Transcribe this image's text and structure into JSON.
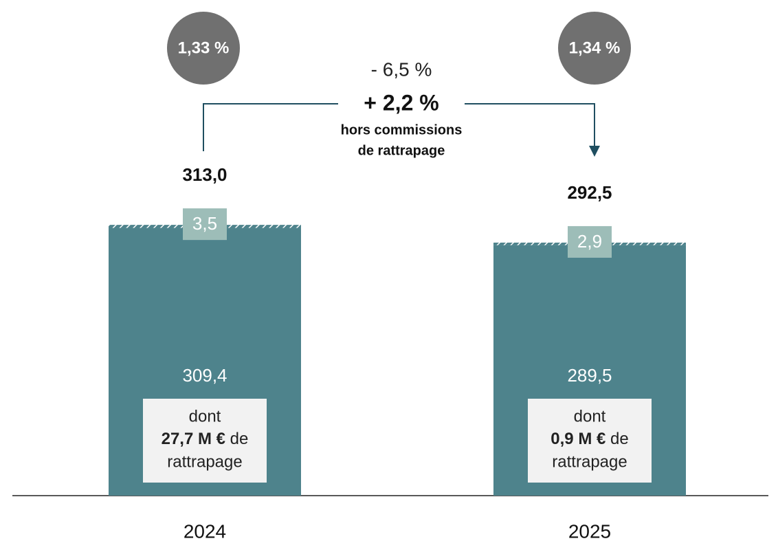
{
  "chart_data": {
    "type": "stacked_bar",
    "categories": [
      "2024",
      "2025"
    ],
    "series": [
      {
        "color": "#4e838c",
        "values": [
          309.4,
          289.5
        ],
        "value_labels": [
          "309,4",
          "289,5"
        ]
      },
      {
        "color": "#4e838c",
        "label_color": "#9dbdb8",
        "hatched": true,
        "values": [
          3.5,
          2.9
        ],
        "value_labels": [
          "3,5",
          "2,9"
        ]
      }
    ],
    "totals": {
      "values": [
        313.0,
        292.5
      ],
      "value_labels": [
        "313,0",
        "292,5"
      ]
    },
    "rates": [
      "1,33 %",
      "1,34 %"
    ],
    "change": {
      "total": "- 6,5 %",
      "excluding": "+ 2,2 %",
      "note": [
        "hors commissions",
        "de rattrapage"
      ]
    },
    "notes": [
      {
        "prefix": "dont",
        "amount": "27,7 M €",
        "suffix": "de",
        "last": "rattrapage"
      },
      {
        "prefix": "dont",
        "amount": "0,9 M €",
        "suffix": "de",
        "last": "rattrapage"
      }
    ]
  }
}
